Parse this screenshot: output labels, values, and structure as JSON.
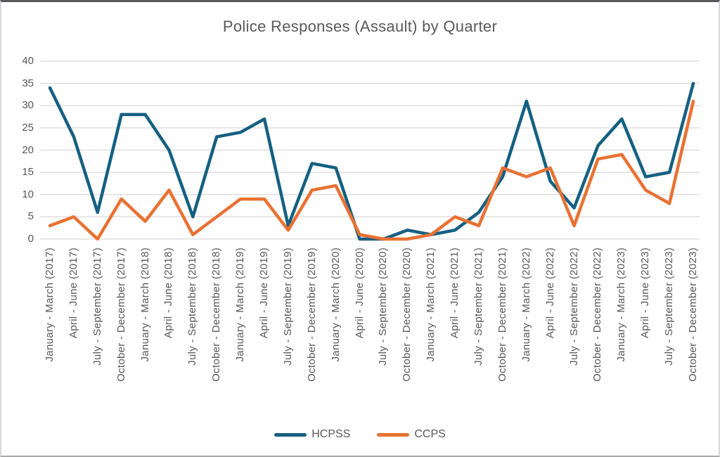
{
  "chart_data": {
    "type": "line",
    "title": "Police Responses (Assault) by Quarter",
    "categories": [
      "January - March (2017)",
      "April - June (2017)",
      "July - September (2017)",
      "October - December (2017)",
      "January - March (2018)",
      "April - June (2018)",
      "July - September (2018)",
      "October - December (2018)",
      "January - March (2019)",
      "April - June (2019)",
      "July - September (2019)",
      "October - December (2019)",
      "January - March (2020)",
      "April - June (2020)",
      "July - September (2020)",
      "October - December (2020)",
      "January - March (2021)",
      "April - June (2021)",
      "July - September (2021)",
      "October - December (2021)",
      "January - March (2022)",
      "April - June (2022)",
      "July - September (2022)",
      "October - December (2022)",
      "January - March (2023)",
      "April - June (2023)",
      "July - September (2023)",
      "October - December (2023)"
    ],
    "series": [
      {
        "name": "HCPSS",
        "color": "#156082",
        "values": [
          34,
          23,
          6,
          28,
          28,
          20,
          5,
          23,
          24,
          27,
          3,
          17,
          16,
          0,
          0,
          2,
          1,
          2,
          6,
          14,
          31,
          13,
          7,
          21,
          27,
          14,
          15,
          35
        ]
      },
      {
        "name": "CCPS",
        "color": "#E97132",
        "values": [
          3,
          5,
          0,
          9,
          4,
          11,
          1,
          5,
          9,
          9,
          2,
          11,
          12,
          1,
          0,
          0,
          1,
          5,
          3,
          16,
          14,
          16,
          3,
          18,
          19,
          11,
          8,
          31
        ]
      }
    ],
    "xlabel": "",
    "ylabel": "",
    "ylim": [
      0,
      40
    ],
    "y_ticks": [
      0,
      5,
      10,
      15,
      20,
      25,
      30,
      35,
      40
    ],
    "grid": true,
    "legend_position": "bottom"
  },
  "colors": {
    "text": "#595959",
    "gridline": "#D9D9D9"
  }
}
